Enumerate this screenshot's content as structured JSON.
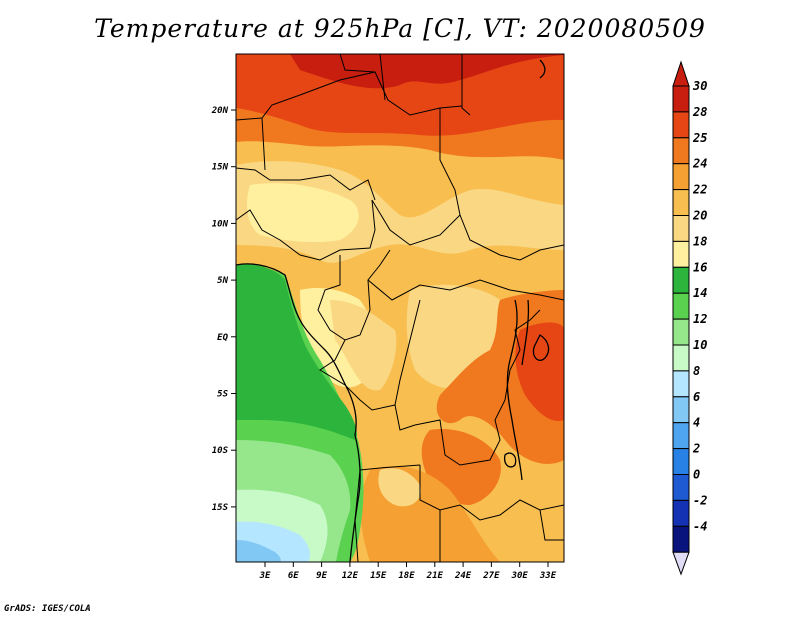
{
  "title": "Temperature at 925hPa [C], VT: 2020080509",
  "credit": "GrADS: IGES/COLA",
  "map": {
    "lat_labels": [
      "20N",
      "15N",
      "10N",
      "5N",
      "EQ",
      "5S",
      "10S",
      "15S"
    ],
    "lon_labels": [
      "3E",
      "6E",
      "9E",
      "12E",
      "15E",
      "18E",
      "21E",
      "24E",
      "27E",
      "30E",
      "33E"
    ]
  },
  "colorbar": {
    "labels": [
      "30",
      "28",
      "25",
      "24",
      "22",
      "20",
      "18",
      "16",
      "14",
      "12",
      "10",
      "8",
      "6",
      "4",
      "2",
      "0",
      "-2",
      "-4"
    ],
    "colors": [
      "#c81e0f",
      "#e64614",
      "#f0781e",
      "#f5a032",
      "#f8be50",
      "#fad782",
      "#fff0a0",
      "#2db43c",
      "#5ad250",
      "#96e68c",
      "#c8fac8",
      "#b4e6ff",
      "#82c8f5",
      "#50a5f0",
      "#2882e6",
      "#1e5ad2",
      "#1432b4",
      "#0a147d"
    ],
    "top_color": "#c81e0f",
    "bottom_color": "#e1dcf5"
  }
}
